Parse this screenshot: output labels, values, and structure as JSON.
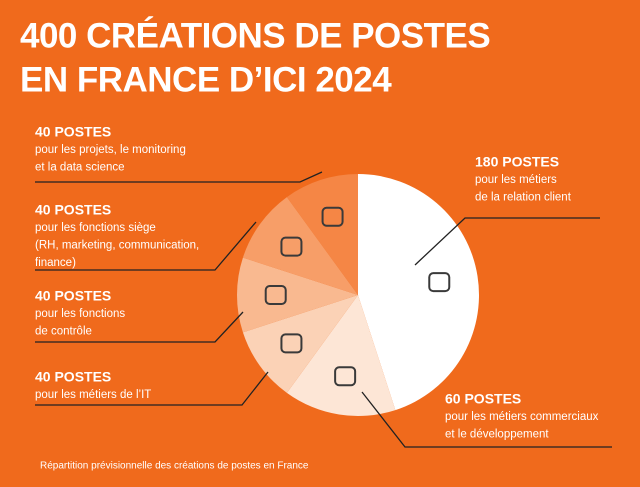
{
  "chart_data": {
    "type": "pie",
    "title": [
      "400 CRÉATIONS DE POSTES",
      "EN FRANCE D’ICI 2024"
    ],
    "categories": [
      [
        "pour les métiers",
        "de la relation client"
      ],
      [
        "pour les métiers commerciaux",
        "et le développement"
      ],
      [
        "pour les métiers de l’IT"
      ],
      [
        "pour les fonctions",
        "de contrôle"
      ],
      [
        "pour les fonctions siège",
        "(RH, marketing, communication,",
        "finance)"
      ],
      [
        "pour les projets, le monitoring",
        "et la data science"
      ]
    ],
    "values": [
      180,
      60,
      40,
      40,
      40,
      40
    ],
    "value_labels": [
      "180 POSTES",
      "60 POSTES",
      "40 POSTES",
      "40 POSTES",
      "40 POSTES",
      "40 POSTES"
    ],
    "colors": [
      "#ffffff",
      "#fde6d6",
      "#fbd2b6",
      "#f9b990",
      "#f79e68",
      "#f58645"
    ],
    "note": "Répartition prévisionnelle des créations de postes en France"
  }
}
